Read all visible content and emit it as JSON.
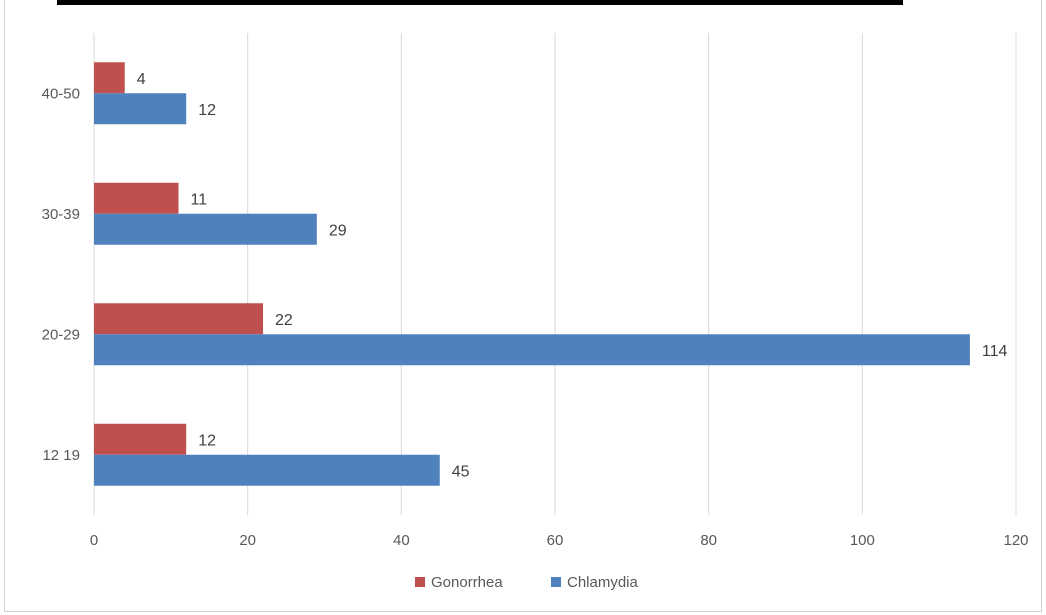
{
  "chart_data": {
    "type": "bar",
    "orientation": "horizontal",
    "categories": [
      "12 19",
      "20-29",
      "30-39",
      "40-50"
    ],
    "series": [
      {
        "name": "Gonorrhea",
        "values": [
          12,
          22,
          11,
          4
        ],
        "color": "#c0504d"
      },
      {
        "name": "Chlamydia",
        "values": [
          45,
          114,
          29,
          12
        ],
        "color": "#4f81bd"
      }
    ],
    "title": "",
    "xlabel": "",
    "ylabel": "",
    "xlim": [
      0,
      120
    ],
    "x_ticks": [
      0,
      20,
      40,
      60,
      80,
      100,
      120
    ],
    "grid": true,
    "data_labels": true,
    "legend_position": "bottom",
    "gridline_color": "#d9d9d9"
  }
}
